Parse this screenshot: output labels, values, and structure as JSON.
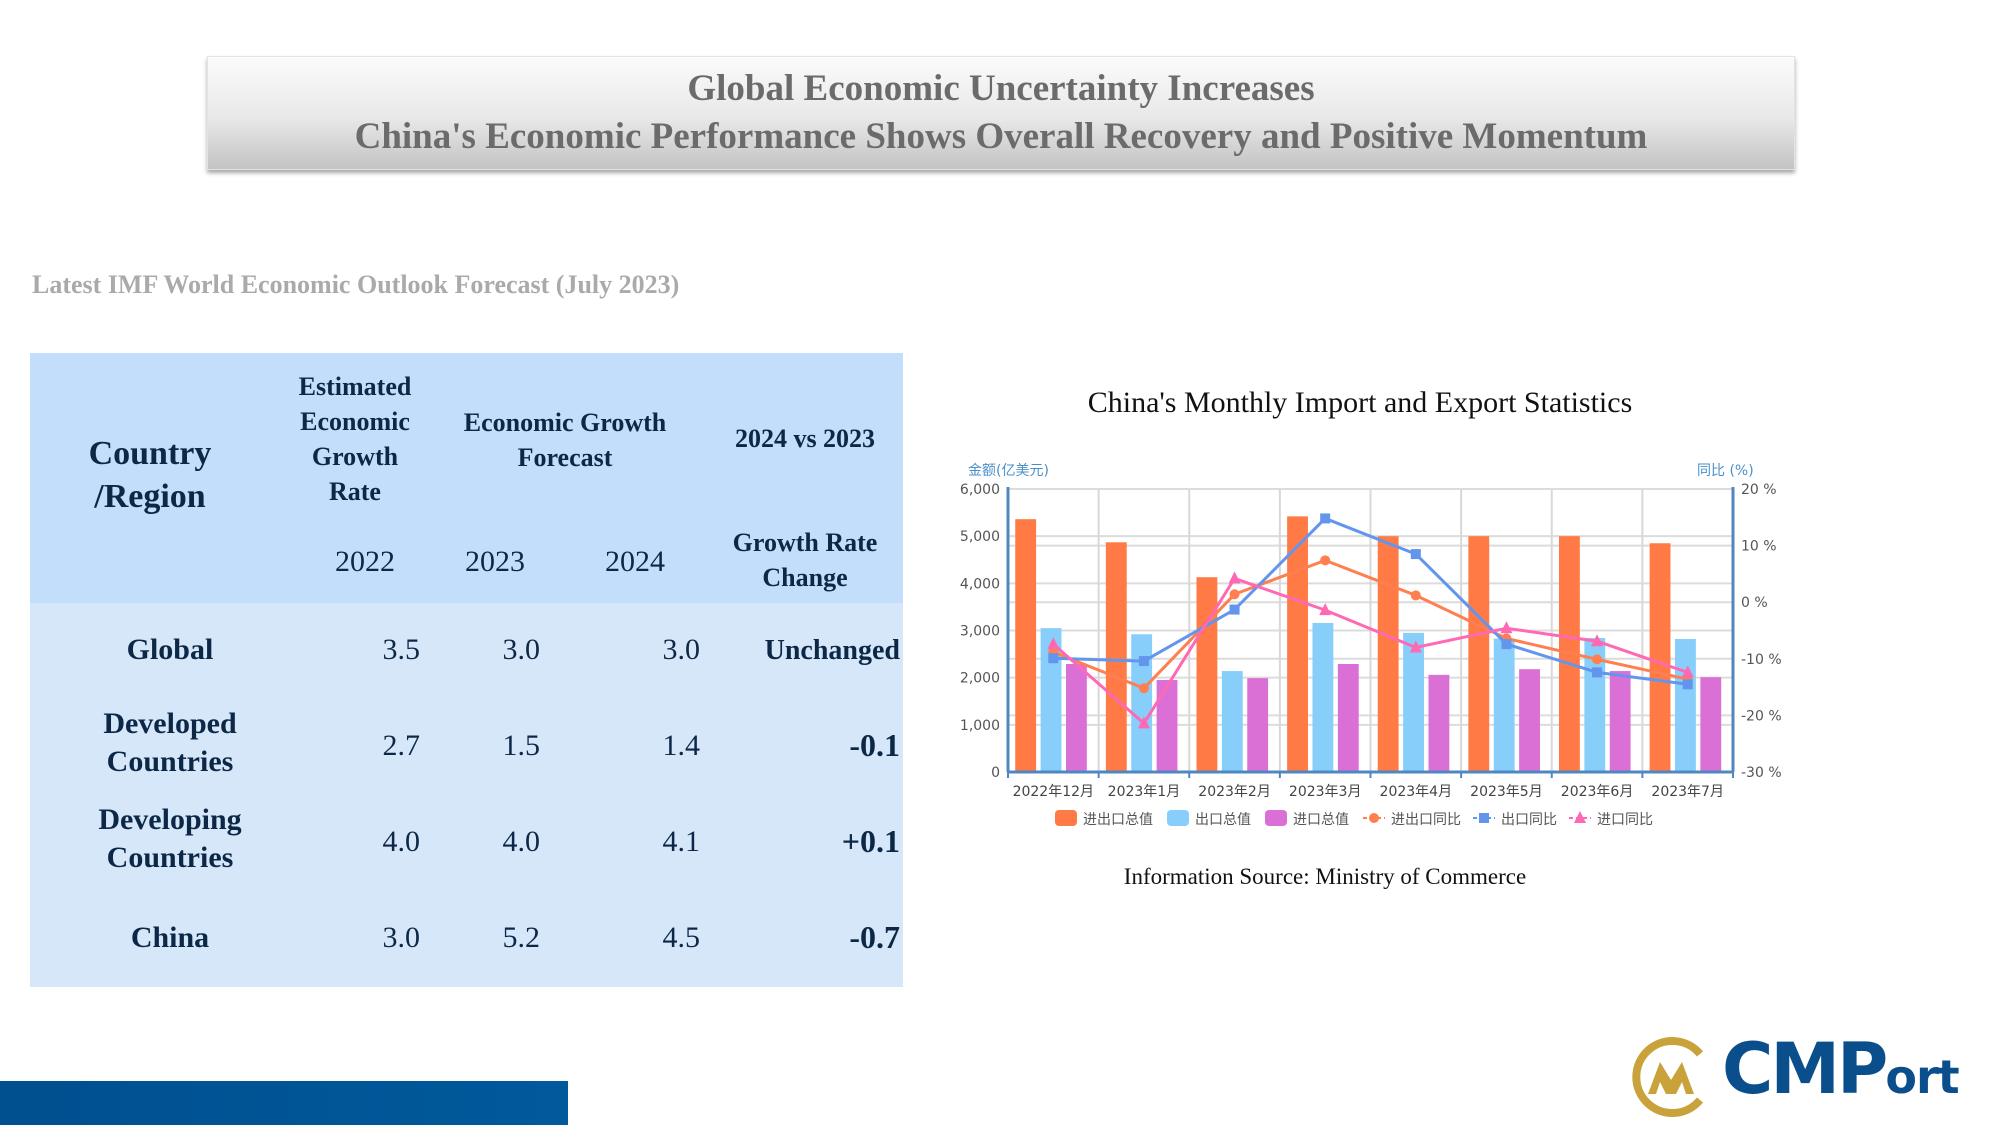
{
  "banner": {
    "line1": "Global Economic Uncertainty Increases",
    "line2": "China's Economic Performance Shows Overall Recovery and Positive Momentum"
  },
  "subtitle": "Latest IMF World Economic Outlook Forecast (July 2023)",
  "table": {
    "headers": {
      "country": [
        "Country",
        "/Region"
      ],
      "estimated": [
        "Estimated",
        "Economic",
        "Growth",
        "Rate"
      ],
      "forecast": [
        "Economic Growth",
        "Forecast"
      ],
      "compare": "2024 vs 2023",
      "years": [
        "2022",
        "2023",
        "2024"
      ],
      "change": [
        "Growth Rate",
        "Change"
      ]
    },
    "rows": [
      {
        "name": [
          "Global"
        ],
        "v2022": "3.5",
        "v2023": "3.0",
        "v2024": "3.0",
        "change": "Unchanged"
      },
      {
        "name": [
          "Developed",
          "Countries"
        ],
        "v2022": "2.7",
        "v2023": "1.5",
        "v2024": "1.4",
        "change": "-0.1"
      },
      {
        "name": [
          "Developing",
          "Countries"
        ],
        "v2022": "4.0",
        "v2023": "4.0",
        "v2024": "4.1",
        "change": "+0.1"
      },
      {
        "name": [
          "China"
        ],
        "v2022": "3.0",
        "v2023": "5.2",
        "v2024": "4.5",
        "change": "-0.7"
      }
    ]
  },
  "chart_title": "China's Monthly Import and Export Statistics",
  "source": "Information Source: Ministry of Commerce",
  "chart_data": {
    "type": "bar",
    "title": "China's Monthly Import and Export Statistics",
    "categories": [
      "2022年12月",
      "2023年1月",
      "2023年2月",
      "2023年3月",
      "2023年4月",
      "2023年5月",
      "2023年6月",
      "2023年7月"
    ],
    "y_left": {
      "label": "金额(亿美元)",
      "range": [
        0,
        6000
      ],
      "ticks": [
        "0",
        "1,000",
        "2,000",
        "3,000",
        "4,000",
        "5,000",
        "6,000"
      ]
    },
    "y_right": {
      "label": "同比 (%)",
      "range": [
        -30,
        20
      ],
      "ticks": [
        "-30 %",
        "-20 %",
        "-10 %",
        "0 %",
        "10 %",
        "20 %"
      ]
    },
    "grid": true,
    "legend_position": "bottom",
    "bar_series": [
      {
        "name": "进出口总值",
        "color": "#ff7a45",
        "values": [
          5360,
          4870,
          4130,
          5420,
          5000,
          5000,
          5000,
          4850
        ]
      },
      {
        "name": "出口总值",
        "color": "#87cefa",
        "values": [
          3050,
          2920,
          2140,
          3160,
          2950,
          2830,
          2840,
          2820
        ]
      },
      {
        "name": "进口总值",
        "color": "#da70d6",
        "values": [
          2290,
          1950,
          1990,
          2290,
          2060,
          2180,
          2140,
          2010
        ]
      }
    ],
    "line_series": [
      {
        "name": "进出口同比",
        "color": "#ff7f50",
        "marker": "circle",
        "values": [
          -8.8,
          -15.2,
          1.4,
          7.4,
          1.2,
          -6.4,
          -10.1,
          -13.6
        ]
      },
      {
        "name": "出口同比",
        "color": "#6495ed",
        "marker": "square",
        "values": [
          -9.9,
          -10.4,
          -1.3,
          14.8,
          8.5,
          -7.4,
          -12.4,
          -14.5
        ]
      },
      {
        "name": "进口同比",
        "color": "#ff69b4",
        "marker": "triangle",
        "values": [
          -7.4,
          -21.4,
          4.2,
          -1.4,
          -8.0,
          -4.6,
          -6.9,
          -12.4
        ]
      }
    ]
  },
  "logo": {
    "text_big": "CMP",
    "text_small": "ort"
  },
  "colors": {
    "navy": "#0d2847",
    "header_bg": "#c2defa",
    "body_bg": "#d6e7fa",
    "brand_blue": "#0a4f8b",
    "brand_gold": "#c9a23c"
  }
}
